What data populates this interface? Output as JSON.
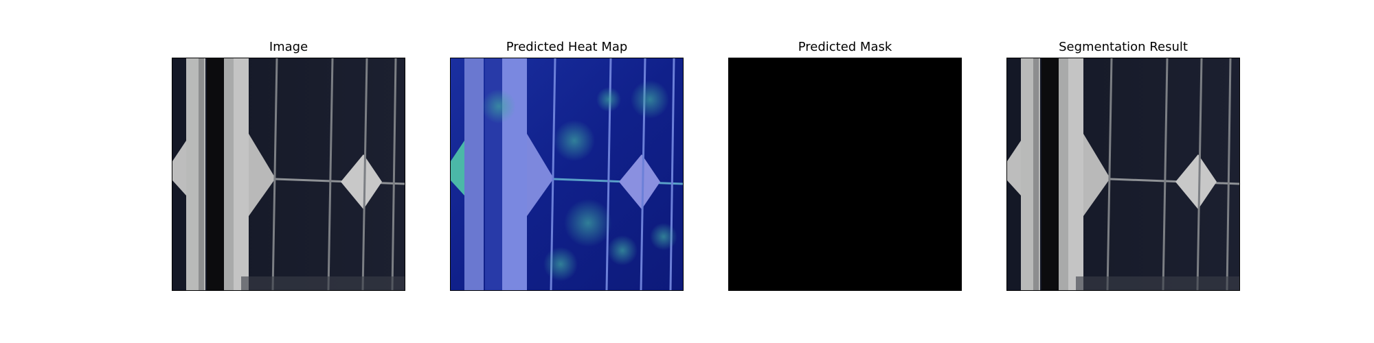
{
  "panels": [
    {
      "title": "Image"
    },
    {
      "title": "Predicted Heat Map"
    },
    {
      "title": "Predicted Mask"
    },
    {
      "title": "Segmentation Result"
    }
  ]
}
